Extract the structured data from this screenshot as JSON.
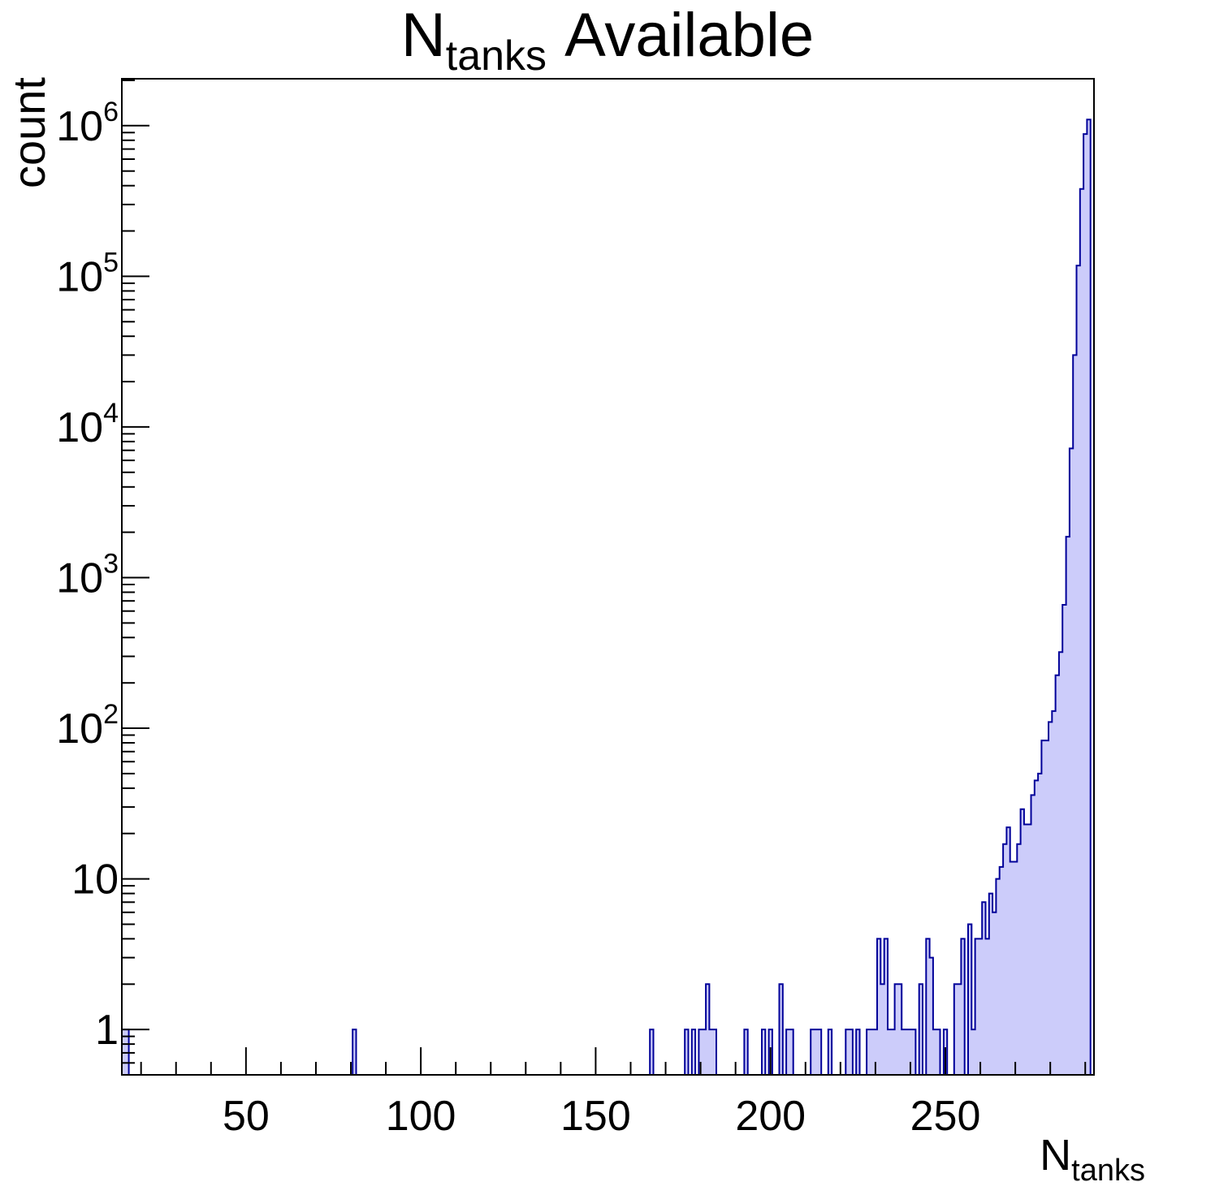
{
  "title": {
    "pre": "N",
    "sub": "tanks",
    "post": "Available"
  },
  "y_axis_label": "count",
  "x_axis_label": {
    "pre": "N",
    "sub": "tanks"
  },
  "colors": {
    "background": "#ffffff",
    "bar_fill": "#ccccfa",
    "bar_edge": "#000099",
    "axis": "#000000",
    "text": "#000000"
  },
  "chart_data": {
    "type": "bar",
    "title": "N_tanks Available",
    "xlabel": "N_tanks",
    "ylabel": "count",
    "legend": null,
    "grid": false,
    "bin_width": 1,
    "x_axis": {
      "min": 14.5,
      "max": 292.5,
      "tick_labels": [
        {
          "v": 50,
          "label": "50"
        },
        {
          "v": 100,
          "label": "100"
        },
        {
          "v": 150,
          "label": "150"
        },
        {
          "v": 200,
          "label": "200"
        },
        {
          "v": 250,
          "label": "250"
        }
      ],
      "minor_tick_step": 10,
      "minor_tick_min": 20,
      "minor_tick_max": 290
    },
    "y_axis": {
      "scale": "log",
      "min": 0.5,
      "max": 2050000,
      "tick_labels": [
        {
          "v": 1,
          "label": "1"
        },
        {
          "v": 10,
          "label": "10"
        },
        {
          "v": 100,
          "base": "10",
          "exp": "2"
        },
        {
          "v": 1000,
          "base": "10",
          "exp": "3"
        },
        {
          "v": 10000,
          "base": "10",
          "exp": "4"
        },
        {
          "v": 100000,
          "base": "10",
          "exp": "5"
        },
        {
          "v": 1000000,
          "base": "10",
          "exp": "6"
        }
      ]
    },
    "bars": [
      [
        15,
        1
      ],
      [
        16,
        1
      ],
      [
        81,
        1
      ],
      [
        166,
        1
      ],
      [
        176,
        1
      ],
      [
        178,
        1
      ],
      [
        180,
        1
      ],
      [
        181,
        1
      ],
      [
        182,
        2
      ],
      [
        183,
        1
      ],
      [
        184,
        1
      ],
      [
        193,
        1
      ],
      [
        198,
        1
      ],
      [
        200,
        1
      ],
      [
        203,
        2
      ],
      [
        205,
        1
      ],
      [
        206,
        1
      ],
      [
        212,
        1
      ],
      [
        213,
        1
      ],
      [
        214,
        1
      ],
      [
        217,
        1
      ],
      [
        222,
        1
      ],
      [
        223,
        1
      ],
      [
        225,
        1
      ],
      [
        228,
        1
      ],
      [
        229,
        1
      ],
      [
        230,
        1
      ],
      [
        231,
        4
      ],
      [
        232,
        2
      ],
      [
        233,
        4
      ],
      [
        234,
        1
      ],
      [
        235,
        1
      ],
      [
        236,
        2
      ],
      [
        237,
        2
      ],
      [
        238,
        1
      ],
      [
        239,
        1
      ],
      [
        240,
        1
      ],
      [
        241,
        1
      ],
      [
        243,
        2
      ],
      [
        245,
        4
      ],
      [
        246,
        3
      ],
      [
        247,
        1
      ],
      [
        248,
        1
      ],
      [
        250,
        1
      ],
      [
        253,
        2
      ],
      [
        254,
        2
      ],
      [
        255,
        4
      ],
      [
        257,
        5
      ],
      [
        258,
        1
      ],
      [
        259,
        4
      ],
      [
        260,
        4
      ],
      [
        261,
        7
      ],
      [
        262,
        4
      ],
      [
        263,
        8
      ],
      [
        264,
        6
      ],
      [
        265,
        10
      ],
      [
        266,
        12
      ],
      [
        267,
        17
      ],
      [
        268,
        22
      ],
      [
        269,
        13
      ],
      [
        270,
        13
      ],
      [
        271,
        17
      ],
      [
        272,
        29
      ],
      [
        273,
        23
      ],
      [
        274,
        23
      ],
      [
        275,
        36
      ],
      [
        276,
        45
      ],
      [
        277,
        50
      ],
      [
        278,
        83
      ],
      [
        279,
        83
      ],
      [
        280,
        110
      ],
      [
        281,
        130
      ],
      [
        282,
        225
      ],
      [
        283,
        320
      ],
      [
        284,
        660
      ],
      [
        285,
        1870
      ],
      [
        286,
        7200
      ],
      [
        287,
        30000
      ],
      [
        288,
        118000
      ],
      [
        289,
        380000
      ],
      [
        290,
        880000
      ],
      [
        291,
        1100000
      ]
    ]
  }
}
